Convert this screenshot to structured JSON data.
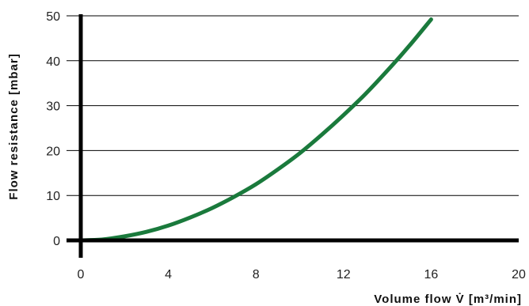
{
  "chart_data": {
    "type": "line",
    "title": "",
    "xlabel": "Volume flow V̇ [m³/min]",
    "ylabel": "Flow resistance [mbar]",
    "xlim": [
      0,
      20
    ],
    "ylim": [
      0,
      50
    ],
    "x_ticks": [
      "0",
      "4",
      "8",
      "12",
      "16",
      "20"
    ],
    "y_ticks": [
      "0",
      "10",
      "20",
      "30",
      "40",
      "50"
    ],
    "grid": "horizontal",
    "legend": "none",
    "series": [
      {
        "color": "#1a7a3c",
        "points": [
          {
            "x": 0,
            "y": 0
          },
          {
            "x": 1,
            "y": 0.2
          },
          {
            "x": 2,
            "y": 0.9
          },
          {
            "x": 3,
            "y": 1.9
          },
          {
            "x": 4,
            "y": 3.3
          },
          {
            "x": 5,
            "y": 5.1
          },
          {
            "x": 6,
            "y": 7.2
          },
          {
            "x": 7,
            "y": 9.7
          },
          {
            "x": 8,
            "y": 12.5
          },
          {
            "x": 9,
            "y": 15.8
          },
          {
            "x": 10,
            "y": 19.4
          },
          {
            "x": 11,
            "y": 23.5
          },
          {
            "x": 12,
            "y": 27.9
          },
          {
            "x": 13,
            "y": 32.6
          },
          {
            "x": 14,
            "y": 37.8
          },
          {
            "x": 15,
            "y": 43.3
          },
          {
            "x": 16,
            "y": 49.2
          }
        ]
      }
    ]
  }
}
